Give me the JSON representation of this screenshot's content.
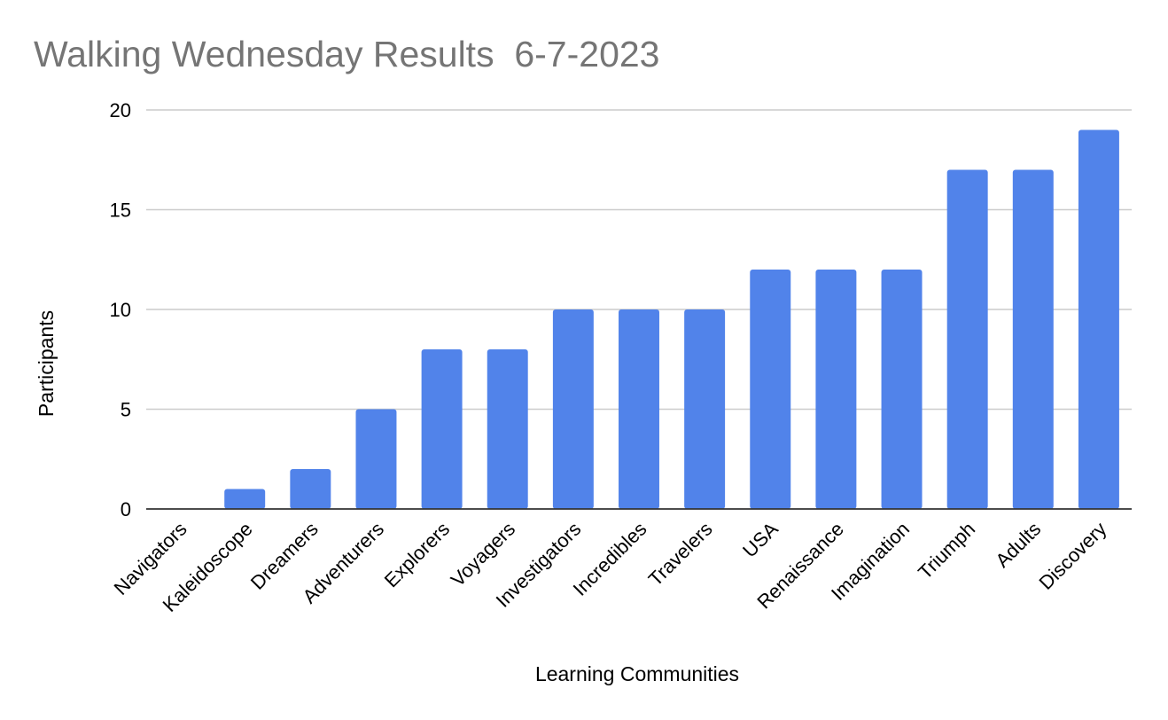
{
  "chart_data": {
    "type": "bar",
    "title": "Walking Wednesday Results  6-7-2023",
    "xlabel": "Learning Communities",
    "ylabel": "Participants",
    "categories": [
      "Navigators",
      "Kaleidoscope",
      "Dreamers",
      "Adventurers",
      "Explorers",
      "Voyagers",
      "Investigators",
      "Incredibles",
      "Travelers",
      "USA",
      "Renaissance",
      "Imagination",
      "Triumph",
      "Adults",
      "Discovery"
    ],
    "values": [
      0,
      1,
      2,
      5,
      8,
      8,
      10,
      10,
      10,
      12,
      12,
      12,
      17,
      17,
      19
    ],
    "ylim": [
      0,
      20
    ],
    "yticks": [
      "0",
      "5",
      "10",
      "15",
      "20"
    ],
    "grid": true,
    "legend": "none",
    "colors": {
      "bar": "#5183ea",
      "title": "#757575",
      "grid": "#cccccc",
      "baseline": "#333333",
      "text": "#000000"
    }
  }
}
